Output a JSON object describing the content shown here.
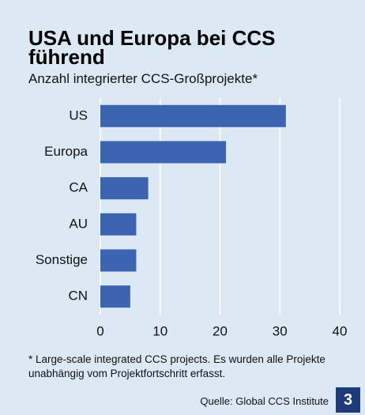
{
  "chart_data": {
    "type": "bar",
    "orientation": "horizontal",
    "title": "USA und Europa bei CCS führend",
    "subtitle": "Anzahl integrierter CCS-Großprojekte*",
    "categories": [
      "US",
      "Europa",
      "CA",
      "AU",
      "Sonstige",
      "CN"
    ],
    "values": [
      31,
      21,
      8,
      6,
      6,
      5
    ],
    "color": "#3c64b1",
    "xlim": [
      0,
      40
    ],
    "xticks": [
      0,
      10,
      20,
      30,
      40
    ],
    "grid": true,
    "footnote": "* Large-scale integrated CCS projects. Es wurden alle Projekte unabhängig vom Projektfortschritt erfasst.",
    "source": "Quelle: Global CCS Institute"
  },
  "page_number": "3"
}
